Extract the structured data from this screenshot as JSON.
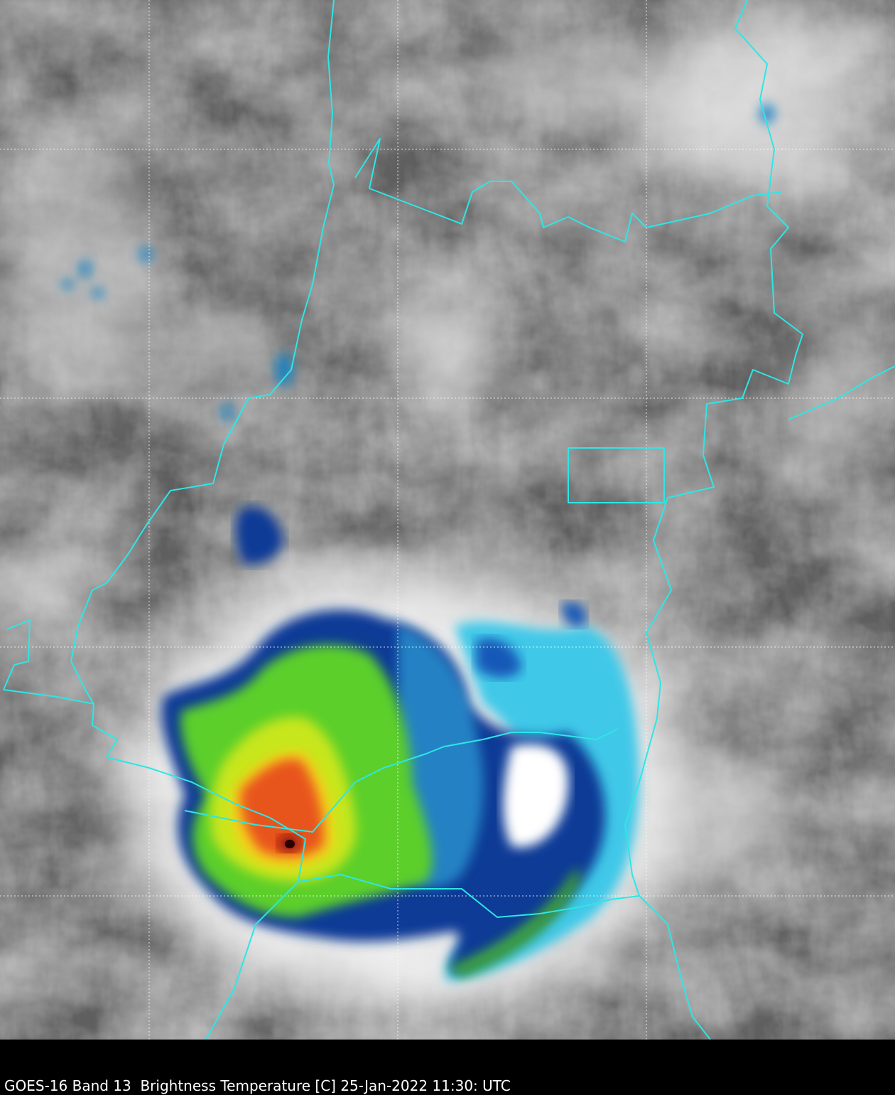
{
  "caption": "GOES-16 Band 13  Brightness Temperature [C] 25-Jan-2022 11:30: UTC"
}
